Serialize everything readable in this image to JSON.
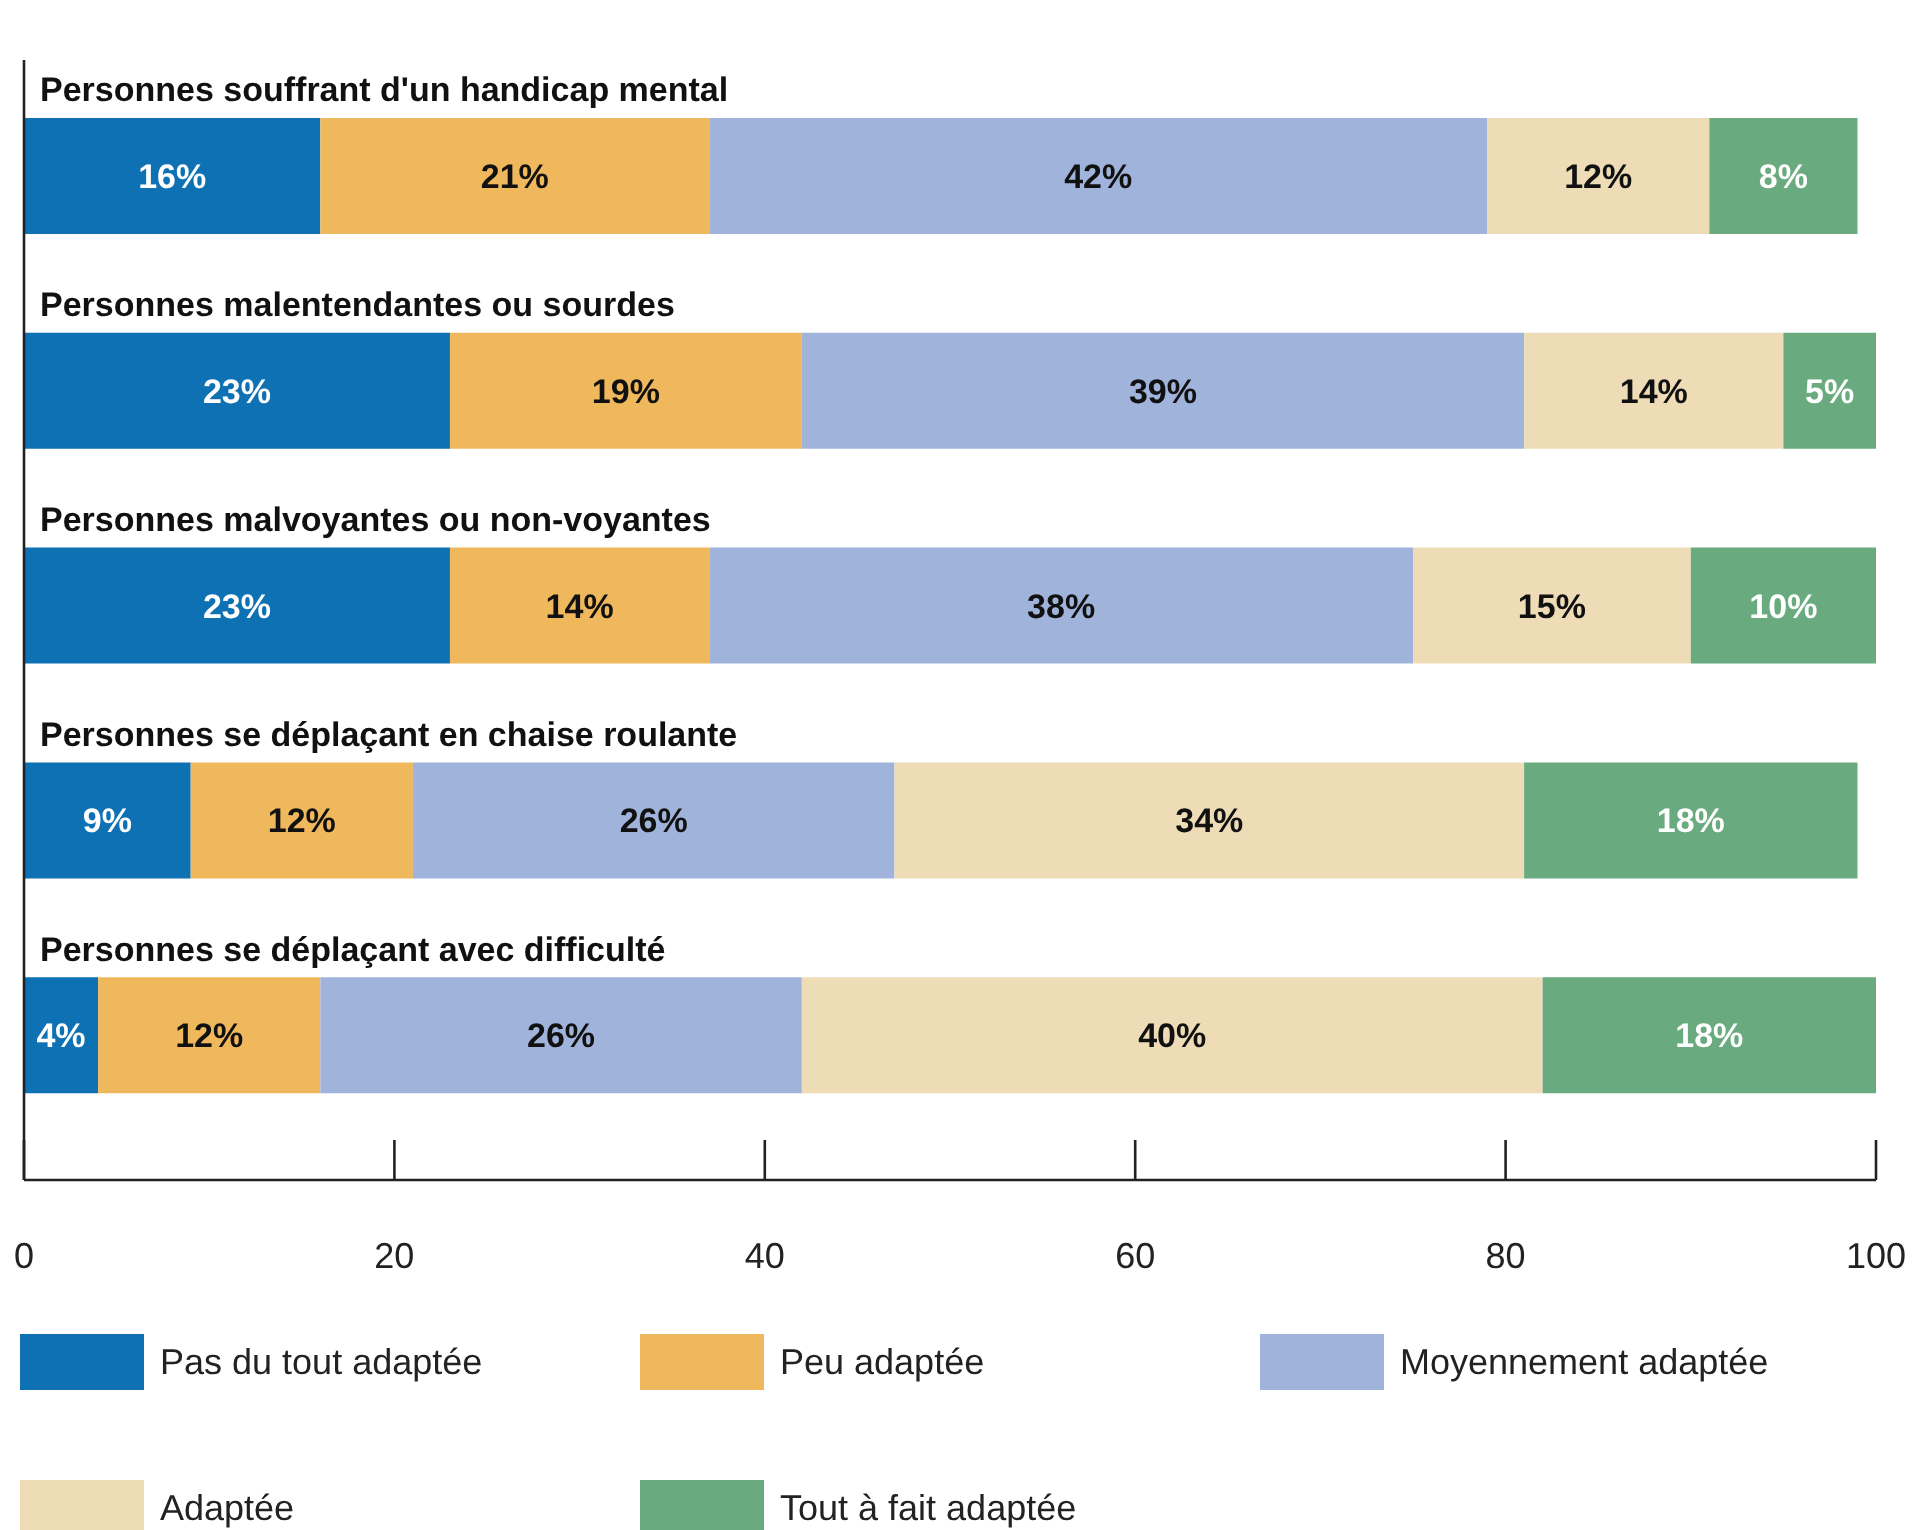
{
  "chart_data": {
    "type": "bar",
    "orientation": "horizontal",
    "stacked": true,
    "categories": [
      "Personnes souffrant d'un handicap mental",
      "Personnes malentendantes ou sourdes",
      "Personnes malvoyantes ou non-voyantes",
      "Personnes se déplaçant en chaise roulante",
      "Personnes se déplaçant avec difficulté"
    ],
    "series": [
      {
        "name": "Pas du tout adaptée",
        "color": "#0e71b4",
        "values": [
          16,
          23,
          23,
          9,
          4
        ],
        "value_labels": [
          "16%",
          "23%",
          "23%",
          "9%",
          "4%"
        ]
      },
      {
        "name": "Peu adaptée",
        "color": "#f0b85c",
        "values": [
          21,
          19,
          14,
          12,
          12
        ],
        "value_labels": [
          "21%",
          "19%",
          "14%",
          "12%",
          "12%"
        ]
      },
      {
        "name": "Moyennement adaptée",
        "color": "#a0b4db",
        "values": [
          42,
          39,
          38,
          26,
          26
        ],
        "value_labels": [
          "42%",
          "39%",
          "38%",
          "26%",
          "26%"
        ]
      },
      {
        "name": "Adaptée",
        "color": "#eedcb6",
        "values": [
          12,
          14,
          15,
          34,
          40
        ],
        "value_labels": [
          "12%",
          "14%",
          "15%",
          "34%",
          "40%"
        ]
      },
      {
        "name": "Tout à fait adaptée",
        "color": "#69aa7e",
        "values": [
          8,
          5,
          10,
          18,
          18
        ],
        "value_labels": [
          "8%",
          "5%",
          "10%",
          "18%",
          "18%"
        ]
      }
    ],
    "xlim": [
      0,
      100
    ],
    "xticks": [
      0,
      20,
      40,
      60,
      80,
      100
    ],
    "grid": false,
    "legend": "bottom"
  }
}
